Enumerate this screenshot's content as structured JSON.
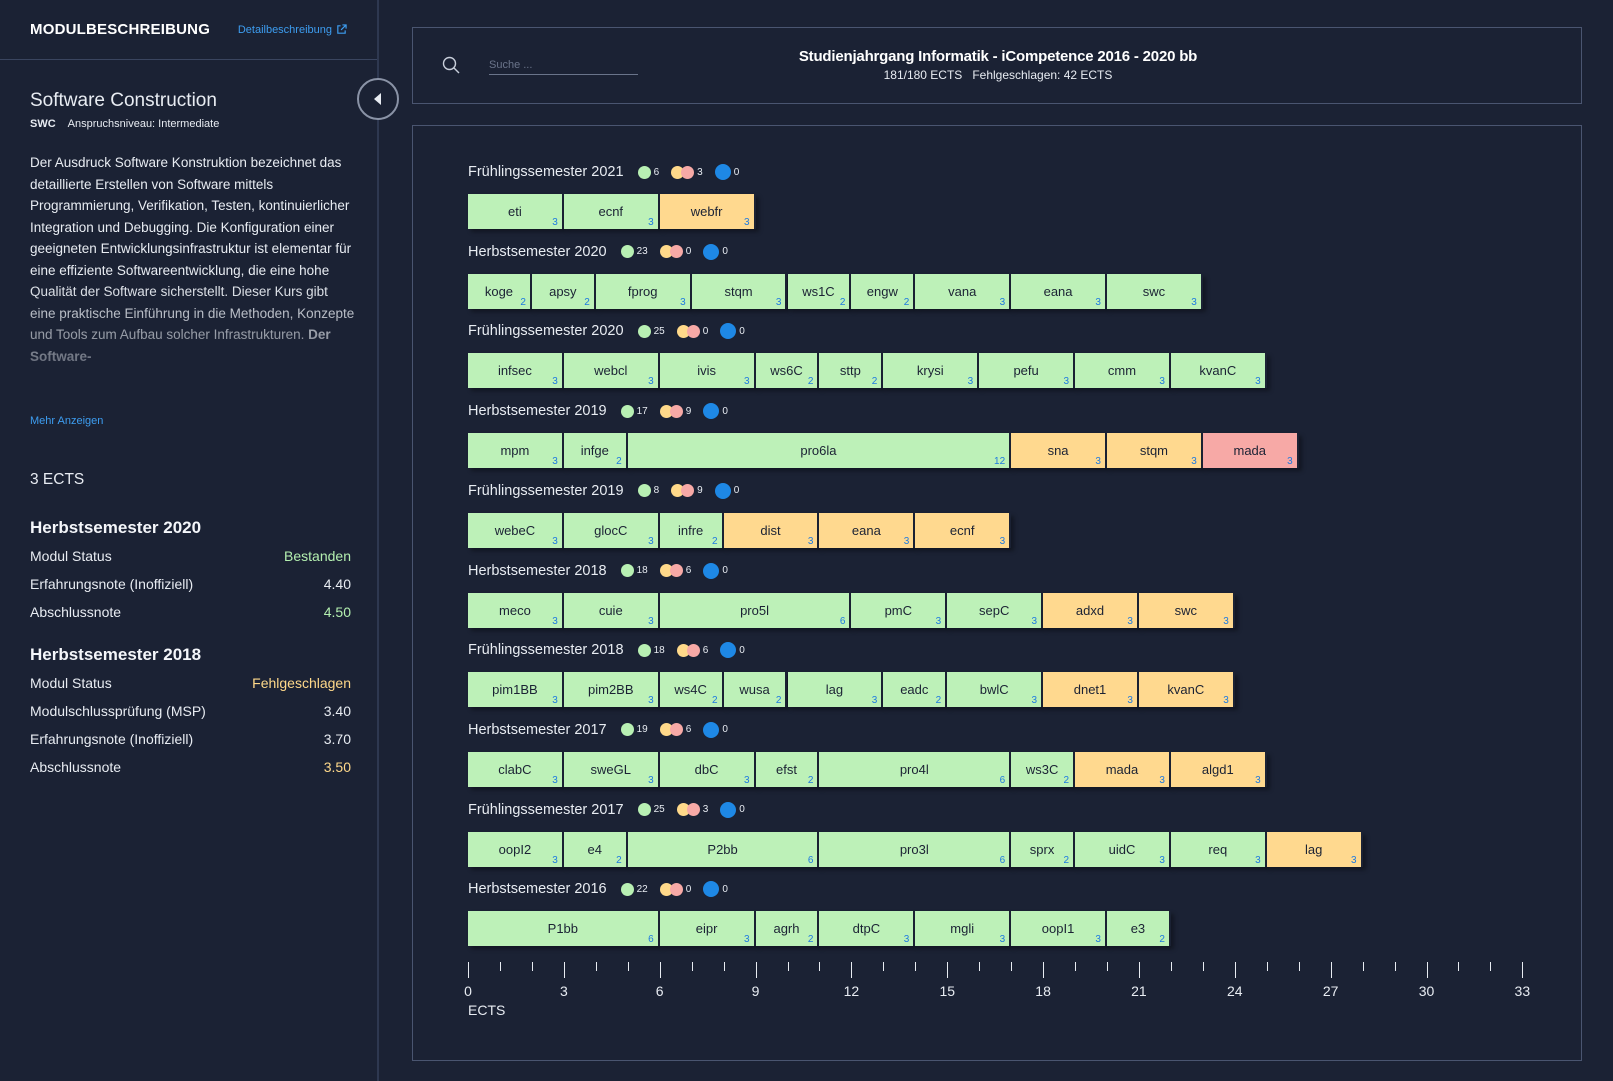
{
  "sidebar": {
    "header_title": "MODULBESCHREIBUNG",
    "detail_link": "Detailbeschreibung",
    "module_title": "Software Construction",
    "module_code": "SWC",
    "level": "Anspruchsniveau: Intermediate",
    "description_normal": "Der Ausdruck Software Konstruktion bezeichnet das detaillierte Erstellen von Software mittels Programmierung, Verifikation, Testen, kontinuierlicher Integration und Debugging. Die Konfiguration einer geeigneten Entwicklungsinfrastruktur ist elementar für eine effiziente Softwareentwicklung, die eine hohe Qualität der Software sicherstellt. Dieser Kurs gibt eine praktische Einführung in die Methoden, Konzepte und Tools zum Aufbau solcher Infrastrukturen.",
    "description_bold": "Der Software-",
    "more_link": "Mehr Anzeigen",
    "ects": "3 ECTS",
    "semesters": [
      {
        "title": "Herbstsemester 2020",
        "rows": [
          {
            "label": "Modul Status",
            "value": "Bestanden",
            "color": "green"
          },
          {
            "label": "Erfahrungsnote (Inoffiziell)",
            "value": "4.40",
            "color": "white"
          },
          {
            "label": "Abschlussnote",
            "value": "4.50",
            "color": "green"
          }
        ]
      },
      {
        "title": "Herbstsemester 2018",
        "rows": [
          {
            "label": "Modul Status",
            "value": "Fehlgeschlagen",
            "color": "yellow"
          },
          {
            "label": "Modulschlussprüfung (MSP)",
            "value": "3.40",
            "color": "white"
          },
          {
            "label": "Erfahrungsnote (Inoffiziell)",
            "value": "3.70",
            "color": "white"
          },
          {
            "label": "Abschlussnote",
            "value": "3.50",
            "color": "yellow"
          }
        ]
      }
    ]
  },
  "header": {
    "search_placeholder": "Suche ...",
    "title": "Studienjahrgang Informatik - iCompetence 2016 - 2020 bb",
    "ects_progress": "181/180 ECTS",
    "failed": "Fehlgeschlagen: 42 ECTS"
  },
  "colors": {
    "passed": "#bdf1b8",
    "failed": "#ffd98f",
    "open": "#f7a9a6",
    "planned": "#1e88e5",
    "accent_link": "#3d9df0",
    "background": "#1b2234"
  },
  "chart_data": {
    "type": "bar",
    "x_axis": {
      "label": "ECTS",
      "range": [
        0,
        33
      ],
      "major_ticks": [
        0,
        3,
        6,
        9,
        12,
        15,
        18,
        21,
        24,
        27,
        30,
        33
      ]
    },
    "semesters": [
      {
        "name": "Frühlingssemester 2021",
        "passed": "6",
        "failed": "3",
        "planned": "0",
        "modules": [
          [
            "eti",
            3,
            "passed"
          ],
          [
            "ecnf",
            3,
            "passed"
          ],
          [
            "webfr",
            3,
            "failed"
          ]
        ]
      },
      {
        "name": "Herbstsemester 2020",
        "passed": "23",
        "failed": "0",
        "planned": "0",
        "modules": [
          [
            "koge",
            2,
            "passed"
          ],
          [
            "apsy",
            2,
            "passed"
          ],
          [
            "fprog",
            3,
            "passed"
          ],
          [
            "stqm",
            3,
            "passed"
          ],
          [
            "ws1C",
            2,
            "passed"
          ],
          [
            "engw",
            2,
            "passed"
          ],
          [
            "vana",
            3,
            "passed"
          ],
          [
            "eana",
            3,
            "passed"
          ],
          [
            "swc",
            3,
            "passed"
          ]
        ]
      },
      {
        "name": "Frühlingssemester 2020",
        "passed": "25",
        "failed": "0",
        "planned": "0",
        "modules": [
          [
            "infsec",
            3,
            "passed"
          ],
          [
            "webcl",
            3,
            "passed"
          ],
          [
            "ivis",
            3,
            "passed"
          ],
          [
            "ws6C",
            2,
            "passed"
          ],
          [
            "sttp",
            2,
            "passed"
          ],
          [
            "krysi",
            3,
            "passed"
          ],
          [
            "pefu",
            3,
            "passed"
          ],
          [
            "cmm",
            3,
            "passed"
          ],
          [
            "kvanC",
            3,
            "passed"
          ]
        ]
      },
      {
        "name": "Herbstsemester 2019",
        "passed": "17",
        "failed": "9",
        "planned": "0",
        "modules": [
          [
            "mpm",
            3,
            "passed"
          ],
          [
            "infge",
            2,
            "passed"
          ],
          [
            "pro6la",
            12,
            "passed"
          ],
          [
            "sna",
            3,
            "failed"
          ],
          [
            "stqm",
            3,
            "failed"
          ],
          [
            "mada",
            3,
            "open"
          ]
        ]
      },
      {
        "name": "Frühlingssemester 2019",
        "passed": "8",
        "failed": "9",
        "planned": "0",
        "modules": [
          [
            "webeC",
            3,
            "passed"
          ],
          [
            "glocC",
            3,
            "passed"
          ],
          [
            "infre",
            2,
            "passed"
          ],
          [
            "dist",
            3,
            "failed"
          ],
          [
            "eana",
            3,
            "failed"
          ],
          [
            "ecnf",
            3,
            "failed"
          ]
        ]
      },
      {
        "name": "Herbstsemester 2018",
        "passed": "18",
        "failed": "6",
        "planned": "0",
        "modules": [
          [
            "meco",
            3,
            "passed"
          ],
          [
            "cuie",
            3,
            "passed"
          ],
          [
            "pro5l",
            6,
            "passed"
          ],
          [
            "pmC",
            3,
            "passed"
          ],
          [
            "sepC",
            3,
            "passed"
          ],
          [
            "adxd",
            3,
            "failed"
          ],
          [
            "swc",
            3,
            "failed"
          ]
        ]
      },
      {
        "name": "Frühlingssemester 2018",
        "passed": "18",
        "failed": "6",
        "planned": "0",
        "modules": [
          [
            "pim1BB",
            3,
            "passed"
          ],
          [
            "pim2BB",
            3,
            "passed"
          ],
          [
            "ws4C",
            2,
            "passed"
          ],
          [
            "wusa",
            2,
            "passed"
          ],
          [
            "lag",
            3,
            "passed"
          ],
          [
            "eadc",
            2,
            "passed"
          ],
          [
            "bwlC",
            3,
            "passed"
          ],
          [
            "dnet1",
            3,
            "failed"
          ],
          [
            "kvanC",
            3,
            "failed"
          ]
        ]
      },
      {
        "name": "Herbstsemester 2017",
        "passed": "19",
        "failed": "6",
        "planned": "0",
        "modules": [
          [
            "clabC",
            3,
            "passed"
          ],
          [
            "sweGL",
            3,
            "passed"
          ],
          [
            "dbC",
            3,
            "passed"
          ],
          [
            "efst",
            2,
            "passed"
          ],
          [
            "pro4l",
            6,
            "passed"
          ],
          [
            "ws3C",
            2,
            "passed"
          ],
          [
            "mada",
            3,
            "failed"
          ],
          [
            "algd1",
            3,
            "failed"
          ]
        ]
      },
      {
        "name": "Frühlingssemester 2017",
        "passed": "25",
        "failed": "3",
        "planned": "0",
        "modules": [
          [
            "oopI2",
            3,
            "passed"
          ],
          [
            "e4",
            2,
            "passed"
          ],
          [
            "P2bb",
            6,
            "passed"
          ],
          [
            "pro3l",
            6,
            "passed"
          ],
          [
            "sprx",
            2,
            "passed"
          ],
          [
            "uidC",
            3,
            "passed"
          ],
          [
            "req",
            3,
            "passed"
          ],
          [
            "lag",
            3,
            "failed"
          ]
        ]
      },
      {
        "name": "Herbstsemester 2016",
        "passed": "22",
        "failed": "0",
        "planned": "0",
        "modules": [
          [
            "P1bb",
            6,
            "passed"
          ],
          [
            "eipr",
            3,
            "passed"
          ],
          [
            "agrh",
            2,
            "passed"
          ],
          [
            "dtpC",
            3,
            "passed"
          ],
          [
            "mgli",
            3,
            "passed"
          ],
          [
            "oopI1",
            3,
            "passed"
          ],
          [
            "e3",
            2,
            "passed"
          ]
        ]
      }
    ]
  }
}
